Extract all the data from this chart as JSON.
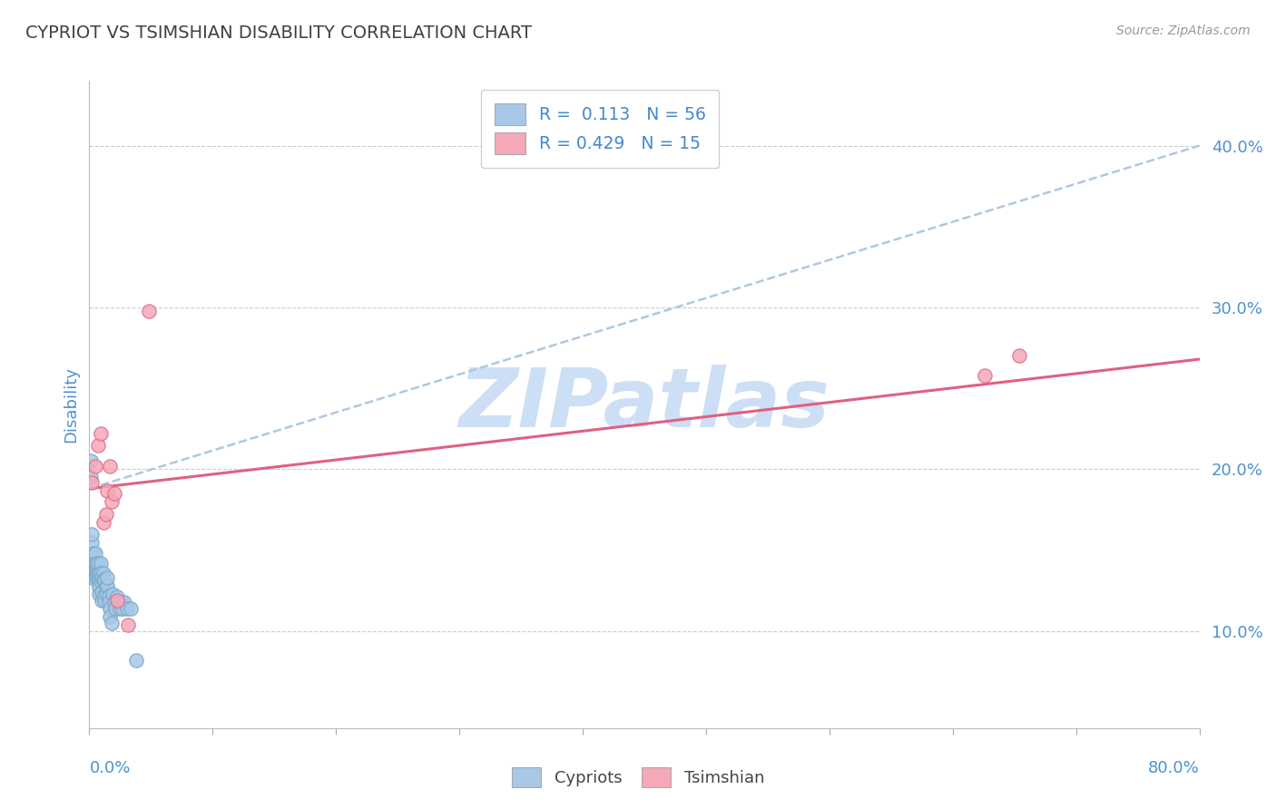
{
  "title": "CYPRIOT VS TSIMSHIAN DISABILITY CORRELATION CHART",
  "source": "Source: ZipAtlas.com",
  "ylabel": "Disability",
  "y_ticks": [
    0.1,
    0.2,
    0.3,
    0.4
  ],
  "y_tick_labels": [
    "10.0%",
    "20.0%",
    "30.0%",
    "40.0%"
  ],
  "xlim": [
    0.0,
    0.8
  ],
  "ylim": [
    0.04,
    0.44
  ],
  "cypriot_color": "#a8c8e8",
  "cypriot_edge_color": "#7aaac8",
  "tsimshian_color": "#f4a8b8",
  "tsimshian_edge_color": "#e07090",
  "cypriot_line_color": "#b0c8e0",
  "tsimshian_line_color": "#e06080",
  "legend_R_cypriot": "0.113",
  "legend_N_cypriot": "56",
  "legend_R_tsimshian": "0.429",
  "legend_N_tsimshian": "15",
  "watermark_text": "ZIPatlas",
  "watermark_color": "#ccdff5",
  "title_color": "#404040",
  "axis_color": "#5090d0",
  "legend_text_color": "#333333",
  "legend_value_color": "#4488cc",
  "cypriot_x": [
    0.001,
    0.001,
    0.001,
    0.002,
    0.002,
    0.003,
    0.003,
    0.003,
    0.003,
    0.004,
    0.004,
    0.004,
    0.004,
    0.005,
    0.005,
    0.005,
    0.005,
    0.006,
    0.006,
    0.006,
    0.007,
    0.007,
    0.007,
    0.007,
    0.008,
    0.008,
    0.008,
    0.009,
    0.009,
    0.009,
    0.01,
    0.01,
    0.01,
    0.011,
    0.011,
    0.012,
    0.012,
    0.013,
    0.013,
    0.014,
    0.014,
    0.015,
    0.015,
    0.016,
    0.017,
    0.018,
    0.019,
    0.02,
    0.021,
    0.022,
    0.023,
    0.024,
    0.025,
    0.027,
    0.03,
    0.034
  ],
  "cypriot_y": [
    0.195,
    0.205,
    0.145,
    0.155,
    0.16,
    0.145,
    0.14,
    0.148,
    0.138,
    0.142,
    0.148,
    0.138,
    0.132,
    0.138,
    0.135,
    0.142,
    0.133,
    0.137,
    0.133,
    0.142,
    0.136,
    0.132,
    0.127,
    0.123,
    0.142,
    0.136,
    0.131,
    0.124,
    0.119,
    0.133,
    0.136,
    0.132,
    0.122,
    0.119,
    0.131,
    0.128,
    0.123,
    0.128,
    0.133,
    0.122,
    0.118,
    0.114,
    0.109,
    0.105,
    0.123,
    0.118,
    0.114,
    0.121,
    0.118,
    0.114,
    0.118,
    0.114,
    0.118,
    0.114,
    0.114,
    0.082
  ],
  "tsimshian_x": [
    0.002,
    0.004,
    0.006,
    0.008,
    0.01,
    0.012,
    0.013,
    0.015,
    0.016,
    0.018,
    0.02,
    0.028,
    0.043,
    0.645,
    0.67
  ],
  "tsimshian_y": [
    0.192,
    0.202,
    0.215,
    0.222,
    0.167,
    0.172,
    0.187,
    0.202,
    0.18,
    0.185,
    0.119,
    0.104,
    0.298,
    0.258,
    0.27
  ],
  "cypriot_trend_x": [
    0.0,
    0.8
  ],
  "cypriot_trend_y": [
    0.188,
    0.4
  ],
  "tsimshian_trend_x": [
    0.0,
    0.8
  ],
  "tsimshian_trend_y": [
    0.188,
    0.268
  ],
  "x_tick_positions": [
    0.0,
    0.0889,
    0.1778,
    0.2667,
    0.3556,
    0.4444,
    0.5333,
    0.6222,
    0.7111,
    0.8
  ]
}
